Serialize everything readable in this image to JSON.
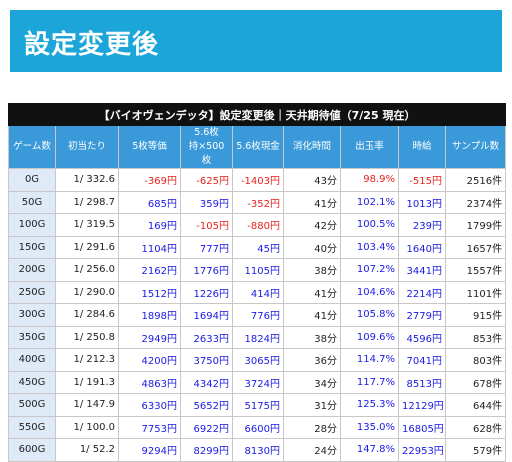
{
  "header": {
    "title": "設定変更後"
  },
  "table": {
    "title": "【バイオヴェンデッタ】設定変更後｜天井期待値（7/25 現在）",
    "headers": [
      "ゲーム数",
      "初当たり",
      "5枚等価",
      "5.6枚\n持×500枚",
      "5.6枚現金",
      "消化時間",
      "出玉率",
      "時給",
      "サンプル数"
    ],
    "rows": [
      [
        "0G",
        "1/ 332.6",
        "-369円",
        "-625円",
        "-1403円",
        "43分",
        "98.9%",
        "-515円",
        "2516件"
      ],
      [
        "50G",
        "1/ 298.7",
        "685円",
        "359円",
        "-352円",
        "41分",
        "102.1%",
        "1013円",
        "2374件"
      ],
      [
        "100G",
        "1/ 319.5",
        "169円",
        "-105円",
        "-880円",
        "42分",
        "100.5%",
        "239円",
        "1799件"
      ],
      [
        "150G",
        "1/ 291.6",
        "1104円",
        "777円",
        "45円",
        "40分",
        "103.4%",
        "1640円",
        "1657件"
      ],
      [
        "200G",
        "1/ 256.0",
        "2162円",
        "1776円",
        "1105円",
        "38分",
        "107.2%",
        "3441円",
        "1557件"
      ],
      [
        "250G",
        "1/ 290.0",
        "1512円",
        "1226円",
        "414円",
        "41分",
        "104.6%",
        "2214円",
        "1101件"
      ],
      [
        "300G",
        "1/ 284.6",
        "1898円",
        "1694円",
        "776円",
        "41分",
        "105.8%",
        "2779円",
        "915件"
      ],
      [
        "350G",
        "1/ 250.8",
        "2949円",
        "2633円",
        "1824円",
        "38分",
        "109.6%",
        "4596円",
        "853件"
      ],
      [
        "400G",
        "1/ 212.3",
        "4200円",
        "3750円",
        "3065円",
        "36分",
        "114.7%",
        "7041円",
        "803件"
      ],
      [
        "450G",
        "1/ 191.3",
        "4863円",
        "4342円",
        "3724円",
        "34分",
        "117.7%",
        "8513円",
        "678件"
      ],
      [
        "500G",
        "1/ 147.9",
        "6330円",
        "5652円",
        "5175円",
        "31分",
        "125.3%",
        "12129円",
        "644件"
      ],
      [
        "550G",
        "1/ 100.0",
        "7753円",
        "6922円",
        "6600円",
        "28分",
        "135.0%",
        "16805円",
        "628件"
      ],
      [
        "600G",
        "1/ 52.2",
        "9294円",
        "8299円",
        "8130円",
        "24分",
        "147.8%",
        "22953円",
        "579件"
      ]
    ]
  }
}
